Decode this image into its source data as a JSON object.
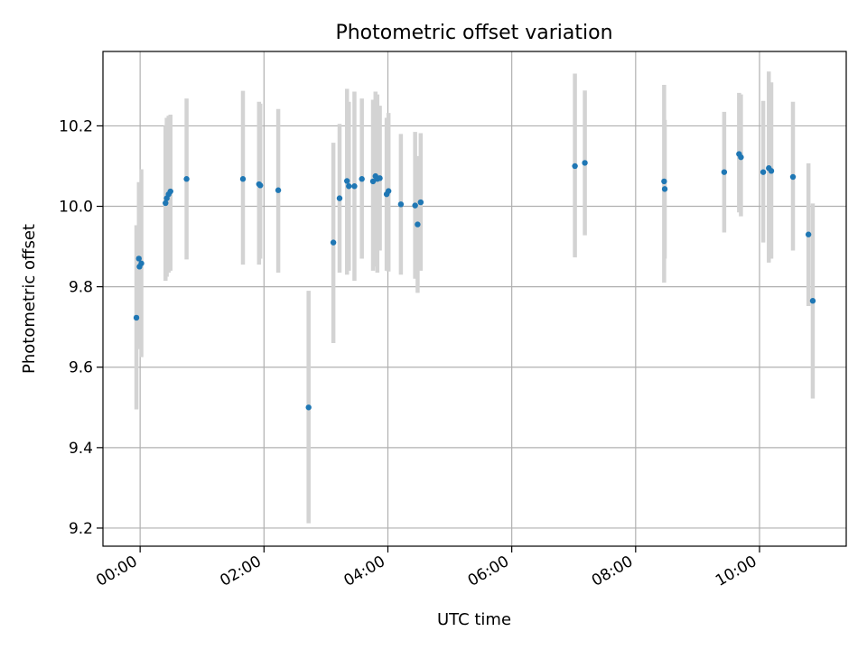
{
  "chart_data": {
    "type": "scatter",
    "title": "Photometric offset variation",
    "xlabel": "UTC time",
    "ylabel": "Photometric offset",
    "x_unit": "hours",
    "xlim": [
      -0.6,
      11.4
    ],
    "ylim": [
      9.155,
      10.385
    ],
    "x_ticks": [
      {
        "value": 0,
        "label": "00:00"
      },
      {
        "value": 2,
        "label": "02:00"
      },
      {
        "value": 4,
        "label": "04:00"
      },
      {
        "value": 6,
        "label": "06:00"
      },
      {
        "value": 8,
        "label": "08:00"
      },
      {
        "value": 10,
        "label": "10:00"
      }
    ],
    "y_ticks": [
      {
        "value": 9.2,
        "label": "9.2"
      },
      {
        "value": 9.4,
        "label": "9.4"
      },
      {
        "value": 9.6,
        "label": "9.6"
      },
      {
        "value": 9.8,
        "label": "9.8"
      },
      {
        "value": 10.0,
        "label": "10.0"
      },
      {
        "value": 10.2,
        "label": "10.2"
      }
    ],
    "grid": true,
    "colors": {
      "point": "#1f77b4",
      "errorbar": "#d3d3d3"
    },
    "series": [
      {
        "points": [
          {
            "x": -0.06,
            "y": 9.723,
            "lo": 9.495,
            "hi": 9.953
          },
          {
            "x": -0.02,
            "y": 9.87,
            "lo": 9.683,
            "hi": 10.06
          },
          {
            "x": -0.01,
            "y": 9.85,
            "lo": 9.645,
            "hi": 10.055
          },
          {
            "x": 0.02,
            "y": 9.858,
            "lo": 9.625,
            "hi": 10.092
          },
          {
            "x": 0.41,
            "y": 10.008,
            "lo": 9.815,
            "hi": 10.2
          },
          {
            "x": 0.43,
            "y": 10.02,
            "lo": 9.825,
            "hi": 10.22
          },
          {
            "x": 0.46,
            "y": 10.03,
            "lo": 9.835,
            "hi": 10.225
          },
          {
            "x": 0.49,
            "y": 10.037,
            "lo": 9.84,
            "hi": 10.228
          },
          {
            "x": 0.75,
            "y": 10.068,
            "lo": 9.868,
            "hi": 10.268
          },
          {
            "x": 1.66,
            "y": 10.068,
            "lo": 9.855,
            "hi": 10.287
          },
          {
            "x": 1.92,
            "y": 10.055,
            "lo": 9.855,
            "hi": 10.26
          },
          {
            "x": 1.94,
            "y": 10.052,
            "lo": 9.87,
            "hi": 10.255
          },
          {
            "x": 2.23,
            "y": 10.04,
            "lo": 9.835,
            "hi": 10.242
          },
          {
            "x": 2.72,
            "y": 9.5,
            "lo": 9.212,
            "hi": 9.79
          },
          {
            "x": 3.12,
            "y": 9.91,
            "lo": 9.66,
            "hi": 10.158
          },
          {
            "x": 3.22,
            "y": 10.02,
            "lo": 9.835,
            "hi": 10.205
          },
          {
            "x": 3.34,
            "y": 10.063,
            "lo": 9.83,
            "hi": 10.292
          },
          {
            "x": 3.37,
            "y": 10.05,
            "lo": 9.84,
            "hi": 10.26
          },
          {
            "x": 3.46,
            "y": 10.05,
            "lo": 9.815,
            "hi": 10.285
          },
          {
            "x": 3.58,
            "y": 10.068,
            "lo": 9.87,
            "hi": 10.268
          },
          {
            "x": 3.76,
            "y": 10.062,
            "lo": 9.84,
            "hi": 10.265
          },
          {
            "x": 3.8,
            "y": 10.075,
            "lo": 9.85,
            "hi": 10.285
          },
          {
            "x": 3.83,
            "y": 10.068,
            "lo": 9.835,
            "hi": 10.278
          },
          {
            "x": 3.87,
            "y": 10.07,
            "lo": 9.89,
            "hi": 10.25
          },
          {
            "x": 3.98,
            "y": 10.03,
            "lo": 9.84,
            "hi": 10.22
          },
          {
            "x": 4.01,
            "y": 10.038,
            "lo": 9.838,
            "hi": 10.232
          },
          {
            "x": 4.21,
            "y": 10.005,
            "lo": 9.83,
            "hi": 10.18
          },
          {
            "x": 4.44,
            "y": 10.002,
            "lo": 9.82,
            "hi": 10.185
          },
          {
            "x": 4.48,
            "y": 9.955,
            "lo": 9.785,
            "hi": 10.125
          },
          {
            "x": 4.53,
            "y": 10.01,
            "lo": 9.84,
            "hi": 10.182
          },
          {
            "x": 7.02,
            "y": 10.1,
            "lo": 9.873,
            "hi": 10.33
          },
          {
            "x": 7.18,
            "y": 10.108,
            "lo": 9.928,
            "hi": 10.288
          },
          {
            "x": 8.46,
            "y": 10.062,
            "lo": 9.81,
            "hi": 10.302
          },
          {
            "x": 8.47,
            "y": 10.043,
            "lo": 9.87,
            "hi": 10.215
          },
          {
            "x": 9.43,
            "y": 10.085,
            "lo": 9.935,
            "hi": 10.235
          },
          {
            "x": 9.67,
            "y": 10.13,
            "lo": 9.985,
            "hi": 10.282
          },
          {
            "x": 9.7,
            "y": 10.122,
            "lo": 9.975,
            "hi": 10.278
          },
          {
            "x": 10.06,
            "y": 10.085,
            "lo": 9.91,
            "hi": 10.262
          },
          {
            "x": 10.15,
            "y": 10.095,
            "lo": 9.86,
            "hi": 10.335
          },
          {
            "x": 10.19,
            "y": 10.088,
            "lo": 9.87,
            "hi": 10.308
          },
          {
            "x": 10.54,
            "y": 10.073,
            "lo": 9.89,
            "hi": 10.26
          },
          {
            "x": 10.79,
            "y": 9.93,
            "lo": 9.752,
            "hi": 10.107
          },
          {
            "x": 10.86,
            "y": 9.765,
            "lo": 9.522,
            "hi": 10.007
          }
        ]
      }
    ]
  }
}
